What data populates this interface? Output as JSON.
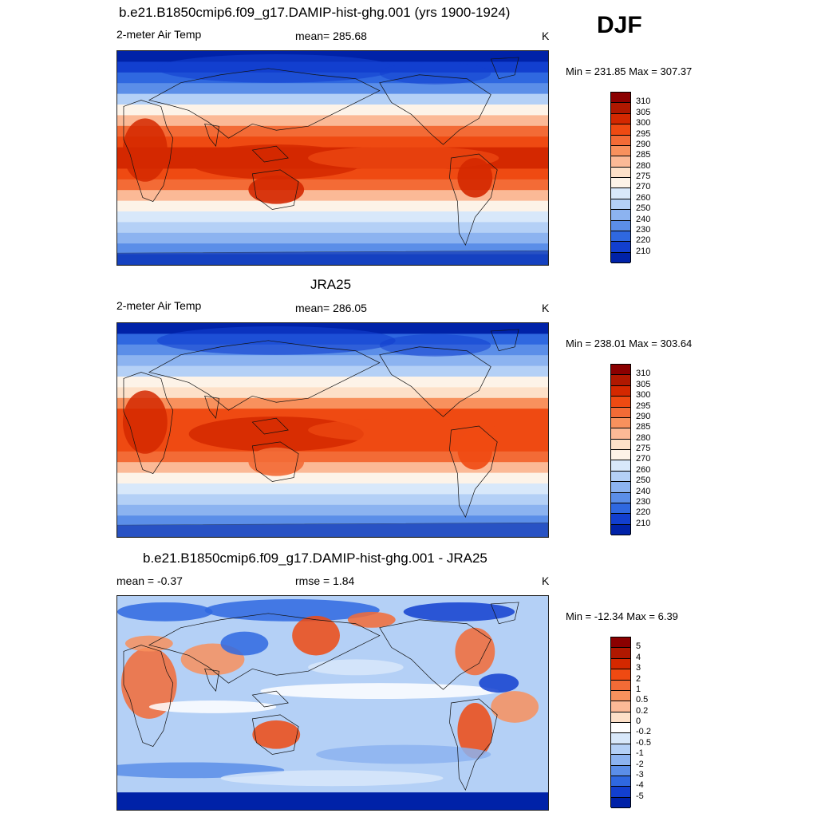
{
  "season": "DJF",
  "panels": [
    {
      "title": "b.e21.B1850cmip6.f09_g17.DAMIP-hist-ghg.001 (yrs 1900-1924)",
      "left_label": "2-meter Air Temp",
      "center_label": "mean= 285.68",
      "units": "K",
      "minmax": "Min = 231.85 Max = 307.37",
      "colorbar": {
        "labels": [
          "310",
          "305",
          "300",
          "295",
          "290",
          "285",
          "280",
          "275",
          "270",
          "260",
          "250",
          "240",
          "230",
          "220",
          "210"
        ],
        "colors": [
          "#8b0000",
          "#b01800",
          "#d42800",
          "#ef4a12",
          "#f36b36",
          "#f8915d",
          "#fbb996",
          "#fde0c8",
          "#fdf3e8",
          "#d8e8fa",
          "#b4d0f6",
          "#8cb3f0",
          "#5b8ee8",
          "#2f68e0",
          "#123fcf",
          "#0022a8"
        ]
      },
      "field": "model"
    },
    {
      "title": "JRA25",
      "left_label": "2-meter Air Temp",
      "center_label": "mean= 286.05",
      "units": "K",
      "minmax": "Min = 238.01 Max = 303.64",
      "colorbar": {
        "labels": [
          "310",
          "305",
          "300",
          "295",
          "290",
          "285",
          "280",
          "275",
          "270",
          "260",
          "250",
          "240",
          "230",
          "220",
          "210"
        ],
        "colors": [
          "#8b0000",
          "#b01800",
          "#d42800",
          "#ef4a12",
          "#f36b36",
          "#f8915d",
          "#fbb996",
          "#fde0c8",
          "#fdf3e8",
          "#d8e8fa",
          "#b4d0f6",
          "#8cb3f0",
          "#5b8ee8",
          "#2f68e0",
          "#123fcf",
          "#0022a8"
        ]
      },
      "field": "obs"
    },
    {
      "title": "b.e21.B1850cmip6.f09_g17.DAMIP-hist-ghg.001 - JRA25",
      "left_label": "mean =  -0.37",
      "center_label": "rmse =   1.84",
      "units": "K",
      "minmax": "Min = -12.34 Max =   6.39",
      "colorbar": {
        "labels": [
          "5",
          "4",
          "3",
          "2",
          "1",
          "0.5",
          "0.2",
          "0",
          "-0.2",
          "-0.5",
          "-1",
          "-2",
          "-3",
          "-4",
          "-5"
        ],
        "colors": [
          "#8b0000",
          "#b01800",
          "#d42800",
          "#ef4a12",
          "#f36b36",
          "#f8915d",
          "#fbb996",
          "#fde0c8",
          "#ffffff",
          "#d8e8fa",
          "#b4d0f6",
          "#8cb3f0",
          "#5b8ee8",
          "#2f68e0",
          "#123fcf",
          "#0022a8"
        ]
      },
      "field": "diff"
    }
  ]
}
